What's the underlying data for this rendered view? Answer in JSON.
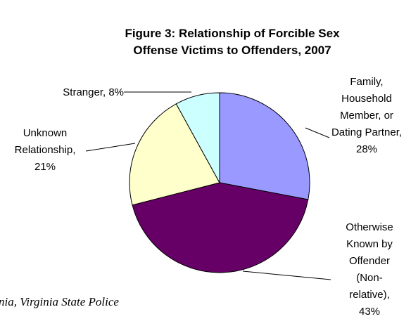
{
  "chart_data": {
    "type": "pie",
    "title": "Figure 3: Relationship of Forcible Sex Offense Victims to Offenders, 2007",
    "values": [
      28,
      43,
      21,
      8
    ],
    "value_labels": [
      "Family, Household Member, or Dating Partner, 28%",
      "Otherwise Known by Offender (Non-relative), 43%",
      "Unknown Relationship, 21%",
      "Stranger, 8%"
    ],
    "colors": [
      "#9999ff",
      "#660066",
      "#ffffcc",
      "#ccffff"
    ],
    "source": "nia, Virginia State Police"
  }
}
